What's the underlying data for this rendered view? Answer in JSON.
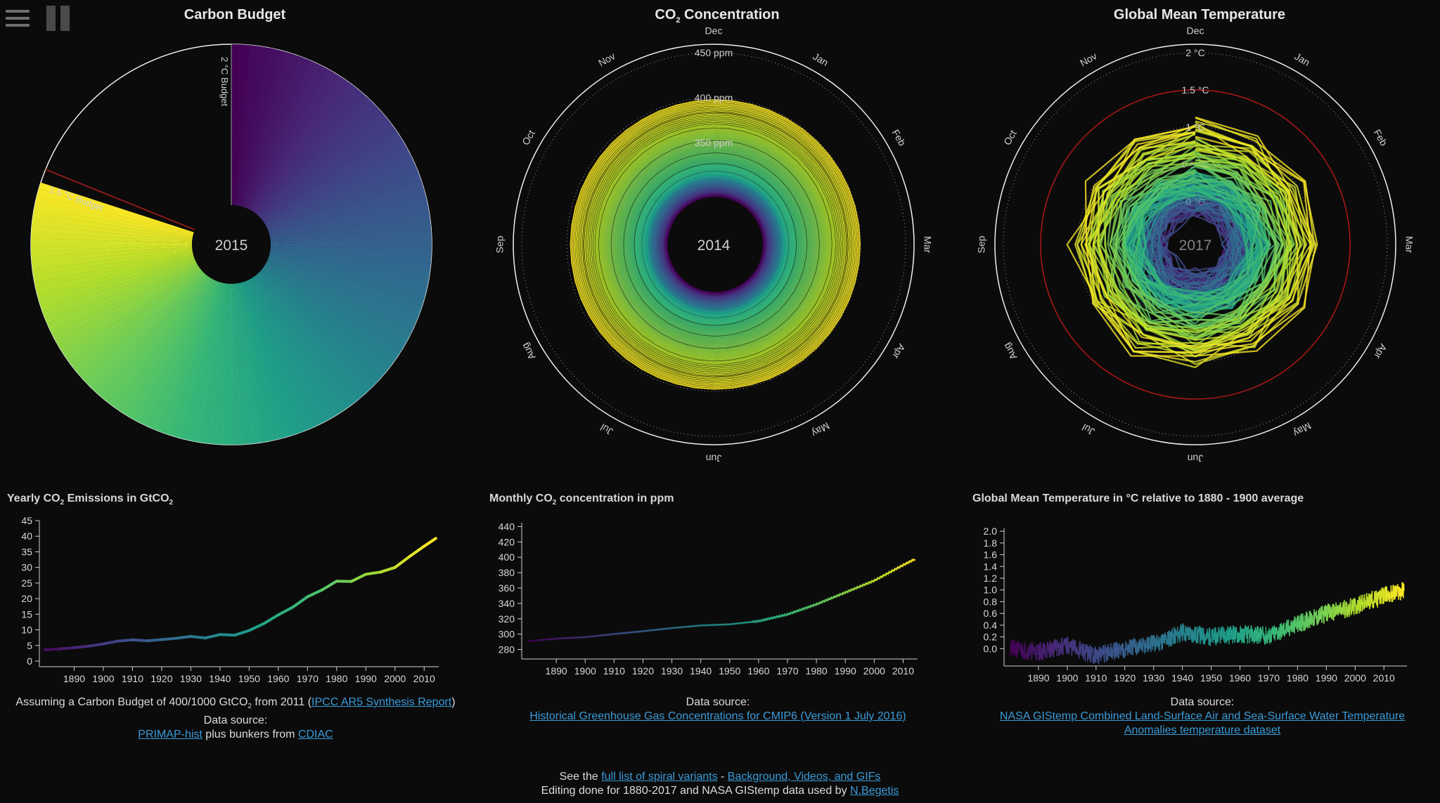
{
  "toolbar": {
    "menu_icon": "hamburger-menu-icon",
    "pause_icon": "pause-icon"
  },
  "panels": {
    "carbon": {
      "title": "Carbon Budget",
      "center_year": "2015",
      "label_2c": "2 °C Budget",
      "label_15c": "1.5 °C Budget"
    },
    "co2": {
      "title_pre": "CO",
      "title_sub": "2",
      "title_post": " Concentration",
      "center_year": "2014",
      "ring_labels": [
        "450 ppm",
        "400 ppm",
        "350 ppm"
      ]
    },
    "temp": {
      "title": "Global Mean Temperature",
      "center_year": "2017",
      "ring_labels": [
        "2 °C",
        "1.5 °C",
        "1 °C",
        "0.5 °C",
        "0 °C"
      ]
    }
  },
  "months": [
    "Jan",
    "Feb",
    "Mar",
    "Apr",
    "May",
    "Jun",
    "Jul",
    "Aug",
    "Sep",
    "Oct",
    "Nov",
    "Dec"
  ],
  "charts": {
    "emissions": {
      "title_pre": "Yearly CO",
      "title_sub": "2",
      "title_mid": " Emissions in GtCO",
      "title_sub2": "2",
      "caption_pre": "Assuming a Carbon Budget of 400/1000 GtCO",
      "caption_sub": "2",
      "caption_post": " from 2011 (",
      "caption_link": "IPCC AR5 Synthesis Report",
      "caption_end": ")",
      "source_label": "Data source:",
      "source_link1": "PRIMAP-hist",
      "source_mid": " plus bunkers from ",
      "source_link2": "CDIAC"
    },
    "co2_monthly": {
      "title_pre": "Monthly CO",
      "title_sub": "2",
      "title_post": " concentration in ppm",
      "source_label": "Data source:",
      "source_link": "Historical Greenhouse Gas Concentrations for CMIP6 (Version 1 July 2016)"
    },
    "temperature": {
      "title": "Global Mean Temperature in °C relative to 1880 - 1900 average",
      "source_label": "Data source:",
      "source_link_line1": "NASA GIStemp Combined Land-Surface Air and Sea-Surface Water Temperature",
      "source_link_line2": "Anomalies temperature dataset"
    }
  },
  "footer": {
    "line1_pre": "See the ",
    "line1_link1": "full list of spiral variants",
    "line1_mid": " - ",
    "line1_link2": "Background, Videos, and GIFs",
    "line2_pre": "Editing done for 1880-2017 and NASA GIStemp data used by ",
    "line2_link": "N.Begetis"
  },
  "colors": {
    "background": "#0b0b0b",
    "axis": "#cfcfcf",
    "link": "#3a9bd9",
    "budget_line": "#8a1a1a"
  },
  "chart_data": [
    {
      "type": "pie",
      "title": "Carbon Budget",
      "center_label": "2015",
      "annotations": [
        "2 °C Budget",
        "1.5 °C Budget"
      ],
      "budget_gtco2": {
        "2C": 1000,
        "1.5C": 400
      },
      "emitted_fraction_of_2C_budget": 0.8,
      "start_year": 2011
    },
    {
      "type": "line",
      "title": "CO2 Concentration",
      "polar": true,
      "center_label": "2014",
      "radial_ticks": [
        "350 ppm",
        "400 ppm",
        "450 ppm"
      ],
      "angular_ticks": [
        "Jan",
        "Feb",
        "Mar",
        "Apr",
        "May",
        "Jun",
        "Jul",
        "Aug",
        "Sep",
        "Oct",
        "Nov",
        "Dec"
      ]
    },
    {
      "type": "line",
      "title": "Global Mean Temperature",
      "polar": true,
      "center_label": "2017",
      "radial_ticks": [
        "0 °C",
        "0.5 °C",
        "1 °C",
        "1.5 °C",
        "2 °C"
      ],
      "angular_ticks": [
        "Jan",
        "Feb",
        "Mar",
        "Apr",
        "May",
        "Jun",
        "Jul",
        "Aug",
        "Sep",
        "Oct",
        "Nov",
        "Dec"
      ]
    },
    {
      "type": "line",
      "title": "Yearly CO2 Emissions in GtCO2",
      "x_ticks": [
        1890,
        1900,
        1910,
        1920,
        1930,
        1940,
        1950,
        1960,
        1970,
        1980,
        1990,
        2000,
        2010
      ],
      "y_ticks": [
        0,
        5,
        10,
        15,
        20,
        25,
        30,
        35,
        40,
        45
      ],
      "xlim": [
        1880,
        2015
      ],
      "ylim": [
        0,
        45
      ],
      "x": [
        1880,
        1885,
        1890,
        1895,
        1900,
        1905,
        1910,
        1915,
        1920,
        1925,
        1930,
        1935,
        1940,
        1945,
        1950,
        1955,
        1960,
        1965,
        1970,
        1975,
        1980,
        1985,
        1990,
        1995,
        2000,
        2005,
        2010,
        2014
      ],
      "y": [
        3.6,
        3.9,
        4.3,
        4.8,
        5.5,
        6.4,
        6.8,
        6.5,
        6.9,
        7.3,
        7.9,
        7.4,
        8.5,
        8.3,
        9.8,
        12.0,
        14.8,
        17.3,
        20.6,
        22.8,
        25.6,
        25.5,
        27.8,
        28.5,
        30.0,
        33.5,
        36.8,
        39.3
      ]
    },
    {
      "type": "line",
      "title": "Monthly CO2 concentration in ppm",
      "x_ticks": [
        1890,
        1900,
        1910,
        1920,
        1930,
        1940,
        1950,
        1960,
        1970,
        1980,
        1990,
        2000,
        2010
      ],
      "y_ticks": [
        280,
        300,
        320,
        340,
        360,
        380,
        400,
        420,
        440
      ],
      "xlim": [
        1880,
        2015
      ],
      "ylim": [
        275,
        445
      ],
      "x": [
        1880,
        1890,
        1900,
        1910,
        1920,
        1930,
        1940,
        1950,
        1960,
        1970,
        1980,
        1990,
        2000,
        2010,
        2014
      ],
      "y": [
        290.8,
        294.2,
        296.1,
        300.2,
        303.8,
        307.9,
        311.3,
        312.8,
        316.9,
        325.7,
        338.8,
        354.2,
        369.6,
        389.8,
        397.5
      ],
      "seasonal_amplitude_ppm": 3
    },
    {
      "type": "line",
      "title": "Global Mean Temperature in °C relative to 1880 - 1900 average",
      "x_ticks": [
        1890,
        1900,
        1910,
        1920,
        1930,
        1940,
        1950,
        1960,
        1970,
        1980,
        1990,
        2000,
        2010
      ],
      "y_ticks": [
        0.0,
        0.2,
        0.4,
        0.6,
        0.8,
        1.0,
        1.2,
        1.4,
        1.6,
        1.8,
        2.0
      ],
      "xlim": [
        1880,
        2018
      ],
      "ylim": [
        -0.2,
        2.05
      ],
      "x": [
        1880,
        1890,
        1900,
        1910,
        1920,
        1930,
        1940,
        1950,
        1960,
        1970,
        1980,
        1990,
        2000,
        2010,
        2017
      ],
      "y": [
        0.0,
        -0.05,
        0.05,
        -0.12,
        0.0,
        0.08,
        0.28,
        0.2,
        0.25,
        0.22,
        0.42,
        0.6,
        0.72,
        0.9,
        1.0
      ],
      "monthly_noise_c": 0.16
    }
  ]
}
